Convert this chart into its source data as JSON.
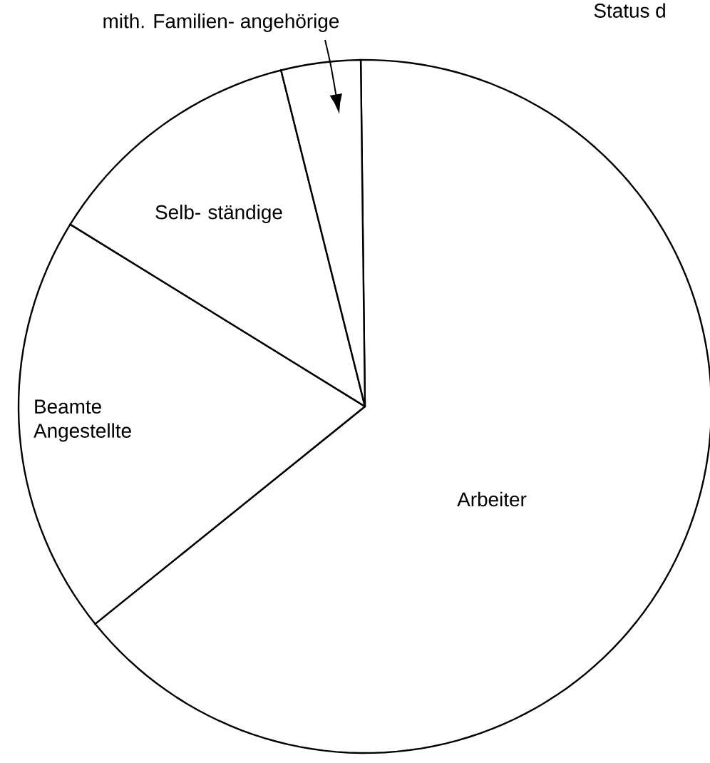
{
  "chart_data": {
    "type": "pie",
    "title": "Status d",
    "categories": [
      "Arbeiter",
      "Beamte Angestellte",
      "Selb- ständige",
      "mith. Familien- angehörige"
    ],
    "values": [
      64.4,
      19.6,
      12.3,
      3.7
    ],
    "colors": [
      "#ffffff",
      "#ffffff",
      "#ffffff",
      "#ffffff"
    ]
  }
}
